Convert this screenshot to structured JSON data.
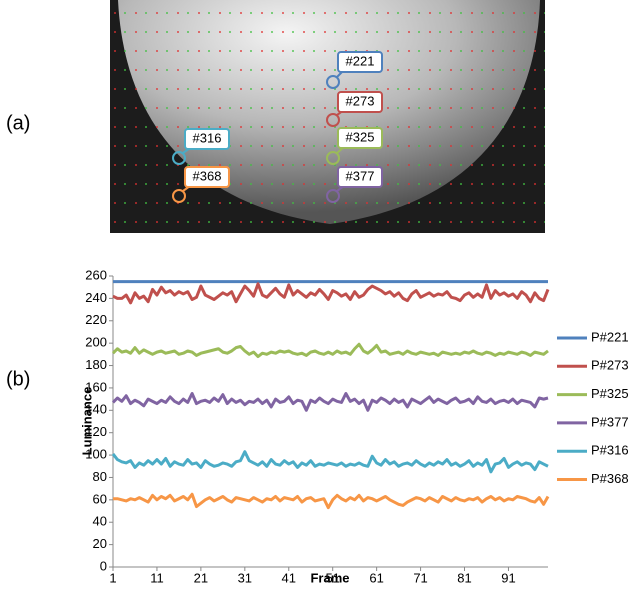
{
  "panel_a_label": "(a)",
  "panel_b_label": "(b)",
  "callouts": [
    {
      "label": "#221"
    },
    {
      "label": "#273"
    },
    {
      "label": "#325"
    },
    {
      "label": "#377"
    },
    {
      "label": "#316"
    },
    {
      "label": "#368"
    }
  ],
  "chart_data": {
    "type": "line",
    "xlabel": "Frame",
    "ylabel": "Luminance",
    "x": [
      1,
      2,
      3,
      4,
      5,
      6,
      7,
      8,
      9,
      10,
      11,
      12,
      13,
      14,
      15,
      16,
      17,
      18,
      19,
      20,
      21,
      22,
      23,
      24,
      25,
      26,
      27,
      28,
      29,
      30,
      31,
      32,
      33,
      34,
      35,
      36,
      37,
      38,
      39,
      40,
      41,
      42,
      43,
      44,
      45,
      46,
      47,
      48,
      49,
      50,
      51,
      52,
      53,
      54,
      55,
      56,
      57,
      58,
      59,
      60,
      61,
      62,
      63,
      64,
      65,
      66,
      67,
      68,
      69,
      70,
      71,
      72,
      73,
      74,
      75,
      76,
      77,
      78,
      79,
      80,
      81,
      82,
      83,
      84,
      85,
      86,
      87,
      88,
      89,
      90,
      91,
      92,
      93,
      94,
      95,
      96,
      97,
      98,
      99,
      100
    ],
    "xlim": [
      1,
      100
    ],
    "xticks": [
      1,
      11,
      21,
      31,
      41,
      51,
      61,
      71,
      81,
      91
    ],
    "ylim": [
      0,
      260
    ],
    "yticks": [
      0,
      20,
      40,
      60,
      80,
      100,
      120,
      140,
      160,
      180,
      200,
      220,
      240,
      260
    ],
    "grid": false,
    "legend": "right",
    "series": [
      {
        "name": "P#221",
        "color": "#4F81BD",
        "values": [
          255,
          255,
          255,
          255,
          255,
          255,
          255,
          255,
          255,
          255,
          255,
          255,
          255,
          255,
          255,
          255,
          255,
          255,
          255,
          255,
          255,
          255,
          255,
          255,
          255,
          255,
          255,
          255,
          255,
          255,
          255,
          255,
          255,
          255,
          255,
          255,
          255,
          255,
          255,
          255,
          255,
          255,
          255,
          255,
          255,
          255,
          255,
          255,
          255,
          255,
          255,
          255,
          255,
          255,
          255,
          255,
          255,
          255,
          255,
          255,
          255,
          255,
          255,
          255,
          255,
          255,
          255,
          255,
          255,
          255,
          255,
          255,
          255,
          255,
          255,
          255,
          255,
          255,
          255,
          255,
          255,
          255,
          255,
          255,
          255,
          255,
          255,
          255,
          255,
          255,
          255,
          255,
          255,
          255,
          255,
          255,
          255,
          255,
          255,
          255
        ]
      },
      {
        "name": "P#273",
        "color": "#C0504D",
        "values": [
          242,
          240,
          240,
          243,
          236,
          245,
          240,
          242,
          237,
          248,
          243,
          250,
          245,
          247,
          243,
          246,
          244,
          246,
          239,
          241,
          251,
          243,
          241,
          239,
          242,
          245,
          243,
          246,
          237,
          244,
          251,
          247,
          242,
          253,
          243,
          241,
          245,
          249,
          244,
          241,
          252,
          243,
          247,
          244,
          241,
          245,
          243,
          248,
          244,
          239,
          247,
          245,
          242,
          244,
          239,
          246,
          241,
          243,
          248,
          251,
          249,
          247,
          244,
          246,
          242,
          245,
          240,
          238,
          244,
          247,
          241,
          243,
          245,
          242,
          244,
          243,
          246,
          241,
          240,
          238,
          243,
          245,
          241,
          244,
          241,
          252,
          240,
          247,
          243,
          245,
          242,
          244,
          240,
          246,
          243,
          237,
          245,
          240,
          238,
          248
        ]
      },
      {
        "name": "P#325",
        "color": "#9BBB59",
        "values": [
          191,
          195,
          192,
          193,
          191,
          196,
          191,
          194,
          192,
          190,
          192,
          193,
          191,
          192,
          193,
          190,
          191,
          193,
          192,
          189,
          191,
          192,
          193,
          194,
          195,
          192,
          191,
          193,
          196,
          197,
          193,
          190,
          192,
          188,
          191,
          190,
          192,
          191,
          193,
          192,
          193,
          191,
          190,
          191,
          189,
          192,
          193,
          191,
          190,
          192,
          190,
          193,
          191,
          192,
          190,
          195,
          199,
          193,
          191,
          194,
          198,
          192,
          193,
          190,
          191,
          192,
          190,
          193,
          191,
          190,
          192,
          191,
          190,
          191,
          189,
          192,
          191,
          190,
          191,
          190,
          192,
          191,
          193,
          191,
          190,
          192,
          191,
          189,
          191,
          190,
          192,
          191,
          190,
          192,
          191,
          189,
          192,
          191,
          190,
          193
        ]
      },
      {
        "name": "P#377",
        "color": "#8064A2",
        "values": [
          147,
          151,
          148,
          153,
          146,
          149,
          147,
          144,
          150,
          148,
          146,
          149,
          147,
          152,
          148,
          146,
          150,
          147,
          155,
          146,
          148,
          149,
          147,
          151,
          148,
          154,
          146,
          150,
          147,
          149,
          145,
          148,
          147,
          150,
          146,
          149,
          143,
          150,
          147,
          148,
          152,
          146,
          149,
          148,
          140,
          149,
          147,
          151,
          148,
          146,
          150,
          148,
          147,
          155,
          148,
          150,
          146,
          149,
          140,
          149,
          147,
          151,
          149,
          146,
          150,
          147,
          149,
          143,
          150,
          148,
          146,
          149,
          152,
          147,
          150,
          148,
          146,
          149,
          151,
          147,
          148,
          150,
          146,
          152,
          148,
          147,
          150,
          146,
          148,
          149,
          147,
          150,
          146,
          149,
          148,
          147,
          143,
          151,
          150,
          151
        ]
      },
      {
        "name": "P#316",
        "color": "#4BACC6",
        "values": [
          101,
          96,
          94,
          93,
          95,
          89,
          93,
          91,
          95,
          92,
          96,
          92,
          97,
          90,
          94,
          92,
          91,
          96,
          92,
          93,
          89,
          95,
          92,
          90,
          91,
          93,
          92,
          90,
          94,
          95,
          103,
          95,
          93,
          91,
          94,
          90,
          96,
          92,
          91,
          95,
          92,
          94,
          89,
          93,
          91,
          95,
          90,
          92,
          91,
          93,
          92,
          91,
          93,
          90,
          92,
          91,
          93,
          91,
          90,
          99,
          93,
          91,
          96,
          92,
          94,
          90,
          92,
          93,
          91,
          95,
          92,
          90,
          93,
          91,
          94,
          92,
          96,
          91,
          93,
          90,
          92,
          95,
          90,
          93,
          91,
          96,
          85,
          92,
          93,
          97,
          89,
          92,
          94,
          91,
          93,
          92,
          87,
          94,
          92,
          90
        ]
      },
      {
        "name": "P#368",
        "color": "#F79646",
        "values": [
          61,
          61,
          60,
          59,
          61,
          60,
          62,
          60,
          58,
          64,
          60,
          63,
          61,
          64,
          59,
          61,
          63,
          60,
          65,
          54,
          57,
          60,
          62,
          59,
          61,
          63,
          60,
          58,
          62,
          61,
          60,
          59,
          62,
          60,
          58,
          61,
          60,
          63,
          59,
          62,
          61,
          60,
          63,
          58,
          61,
          62,
          59,
          60,
          61,
          53,
          60,
          64,
          61,
          59,
          62,
          60,
          64,
          59,
          62,
          61,
          59,
          61,
          63,
          60,
          58,
          56,
          55,
          58,
          60,
          62,
          61,
          59,
          62,
          60,
          58,
          63,
          61,
          59,
          62,
          60,
          59,
          61,
          60,
          62,
          58,
          61,
          63,
          60,
          62,
          59,
          61,
          60,
          63,
          62,
          61,
          59,
          58,
          62,
          56,
          63
        ]
      }
    ]
  }
}
